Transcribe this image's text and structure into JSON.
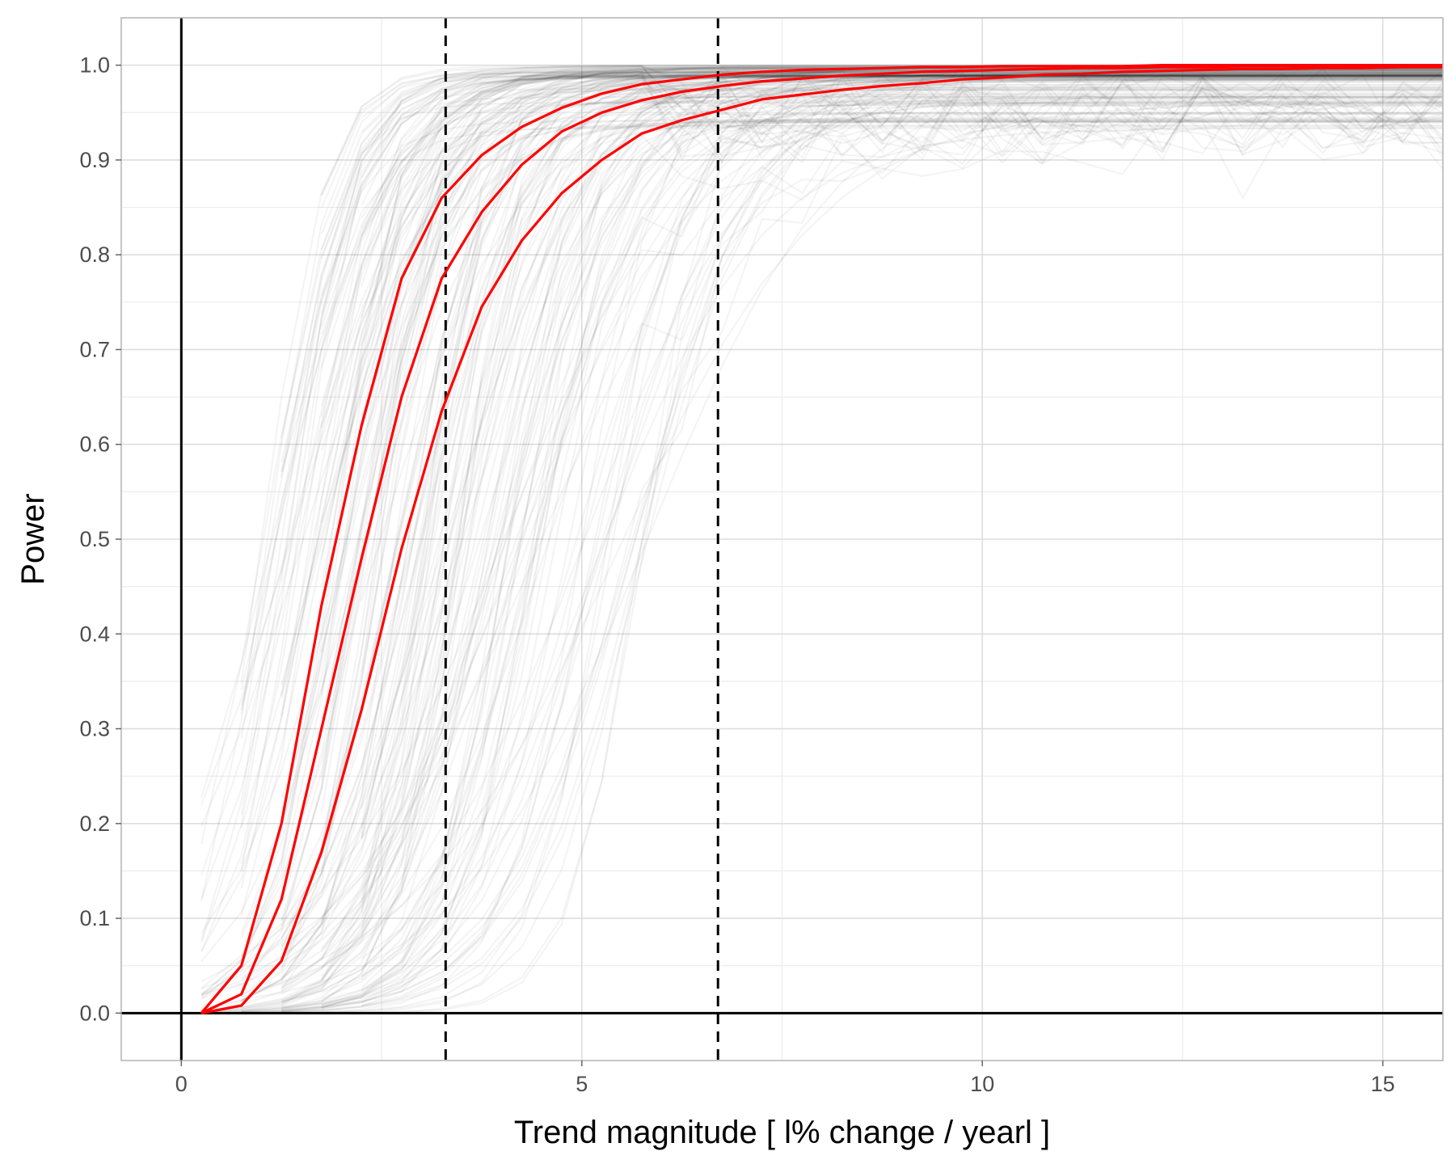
{
  "chart_data": {
    "type": "line",
    "title": "",
    "xlabel": "Trend magnitude [ l% change / yearl ]",
    "ylabel": "Power",
    "xlim": [
      -0.75,
      15.75
    ],
    "ylim": [
      -0.05,
      1.05
    ],
    "x_ticks": [
      0,
      5,
      10,
      15
    ],
    "x_tick_labels": [
      "0",
      "5",
      "10",
      "15"
    ],
    "y_ticks": [
      0.0,
      0.1,
      0.2,
      0.3,
      0.4,
      0.5,
      0.6,
      0.7,
      0.8,
      0.9,
      1.0
    ],
    "y_tick_labels": [
      "0.0",
      "0.1",
      "0.2",
      "0.3",
      "0.4",
      "0.5",
      "0.6",
      "0.7",
      "0.8",
      "0.9",
      "1.0"
    ],
    "grid": true,
    "reference_lines": {
      "horizontal_solid": [
        0.0
      ],
      "vertical_solid": [
        0.0
      ],
      "vertical_dashed": [
        3.3,
        6.7
      ]
    },
    "colors": {
      "background_curves": "#000000",
      "highlight_curves": "#ff0000",
      "grid": "#dedede",
      "panel_border": "#b3b3b3"
    },
    "background_curve_count": 200,
    "highlight_series": [
      {
        "x": [
          0.25,
          0.75,
          1.25,
          1.75,
          2.25,
          2.75,
          3.25,
          3.75,
          4.25,
          4.75,
          5.25,
          5.75,
          6.25,
          6.75,
          7.25,
          7.75,
          8.25,
          8.75,
          9.25,
          9.75,
          10.25,
          10.75,
          11.25,
          11.75,
          12.25,
          12.75,
          13.25,
          13.75,
          14.25,
          14.75,
          15.25,
          15.75
        ],
        "values": [
          0.0,
          0.05,
          0.2,
          0.43,
          0.62,
          0.775,
          0.86,
          0.905,
          0.935,
          0.955,
          0.97,
          0.98,
          0.985,
          0.99,
          0.993,
          0.995,
          0.996,
          0.997,
          0.998,
          0.998,
          0.999,
          0.999,
          0.999,
          0.999,
          1.0,
          1.0,
          1.0,
          1.0,
          1.0,
          1.0,
          1.0,
          1.0
        ]
      },
      {
        "x": [
          0.25,
          0.75,
          1.25,
          1.75,
          2.25,
          2.75,
          3.25,
          3.75,
          4.25,
          4.75,
          5.25,
          5.75,
          6.25,
          6.75,
          7.25,
          7.75,
          8.25,
          8.75,
          9.25,
          9.75,
          10.25,
          10.75,
          11.25,
          11.75,
          12.25,
          12.75,
          13.25,
          13.75,
          14.25,
          14.75,
          15.25,
          15.75
        ],
        "values": [
          0.0,
          0.02,
          0.12,
          0.3,
          0.48,
          0.65,
          0.775,
          0.845,
          0.895,
          0.93,
          0.95,
          0.963,
          0.972,
          0.978,
          0.983,
          0.986,
          0.989,
          0.991,
          0.993,
          0.994,
          0.995,
          0.996,
          0.997,
          0.997,
          0.998,
          0.998,
          0.999,
          0.999,
          0.999,
          0.999,
          0.999,
          1.0
        ]
      },
      {
        "x": [
          0.25,
          0.75,
          1.25,
          1.75,
          2.25,
          2.75,
          3.25,
          3.75,
          4.25,
          4.75,
          5.25,
          5.75,
          6.25,
          6.75,
          7.25,
          7.75,
          8.25,
          8.75,
          9.25,
          9.75,
          10.25,
          10.75,
          11.25,
          11.75,
          12.25,
          12.75,
          13.25,
          13.75,
          14.25,
          14.75,
          15.25,
          15.75
        ],
        "values": [
          0.0,
          0.008,
          0.055,
          0.17,
          0.32,
          0.49,
          0.635,
          0.745,
          0.815,
          0.865,
          0.9,
          0.928,
          0.942,
          0.953,
          0.964,
          0.969,
          0.974,
          0.978,
          0.981,
          0.985,
          0.987,
          0.99,
          0.991,
          0.993,
          0.994,
          0.995,
          0.996,
          0.996,
          0.997,
          0.997,
          0.998,
          0.998
        ]
      }
    ]
  }
}
